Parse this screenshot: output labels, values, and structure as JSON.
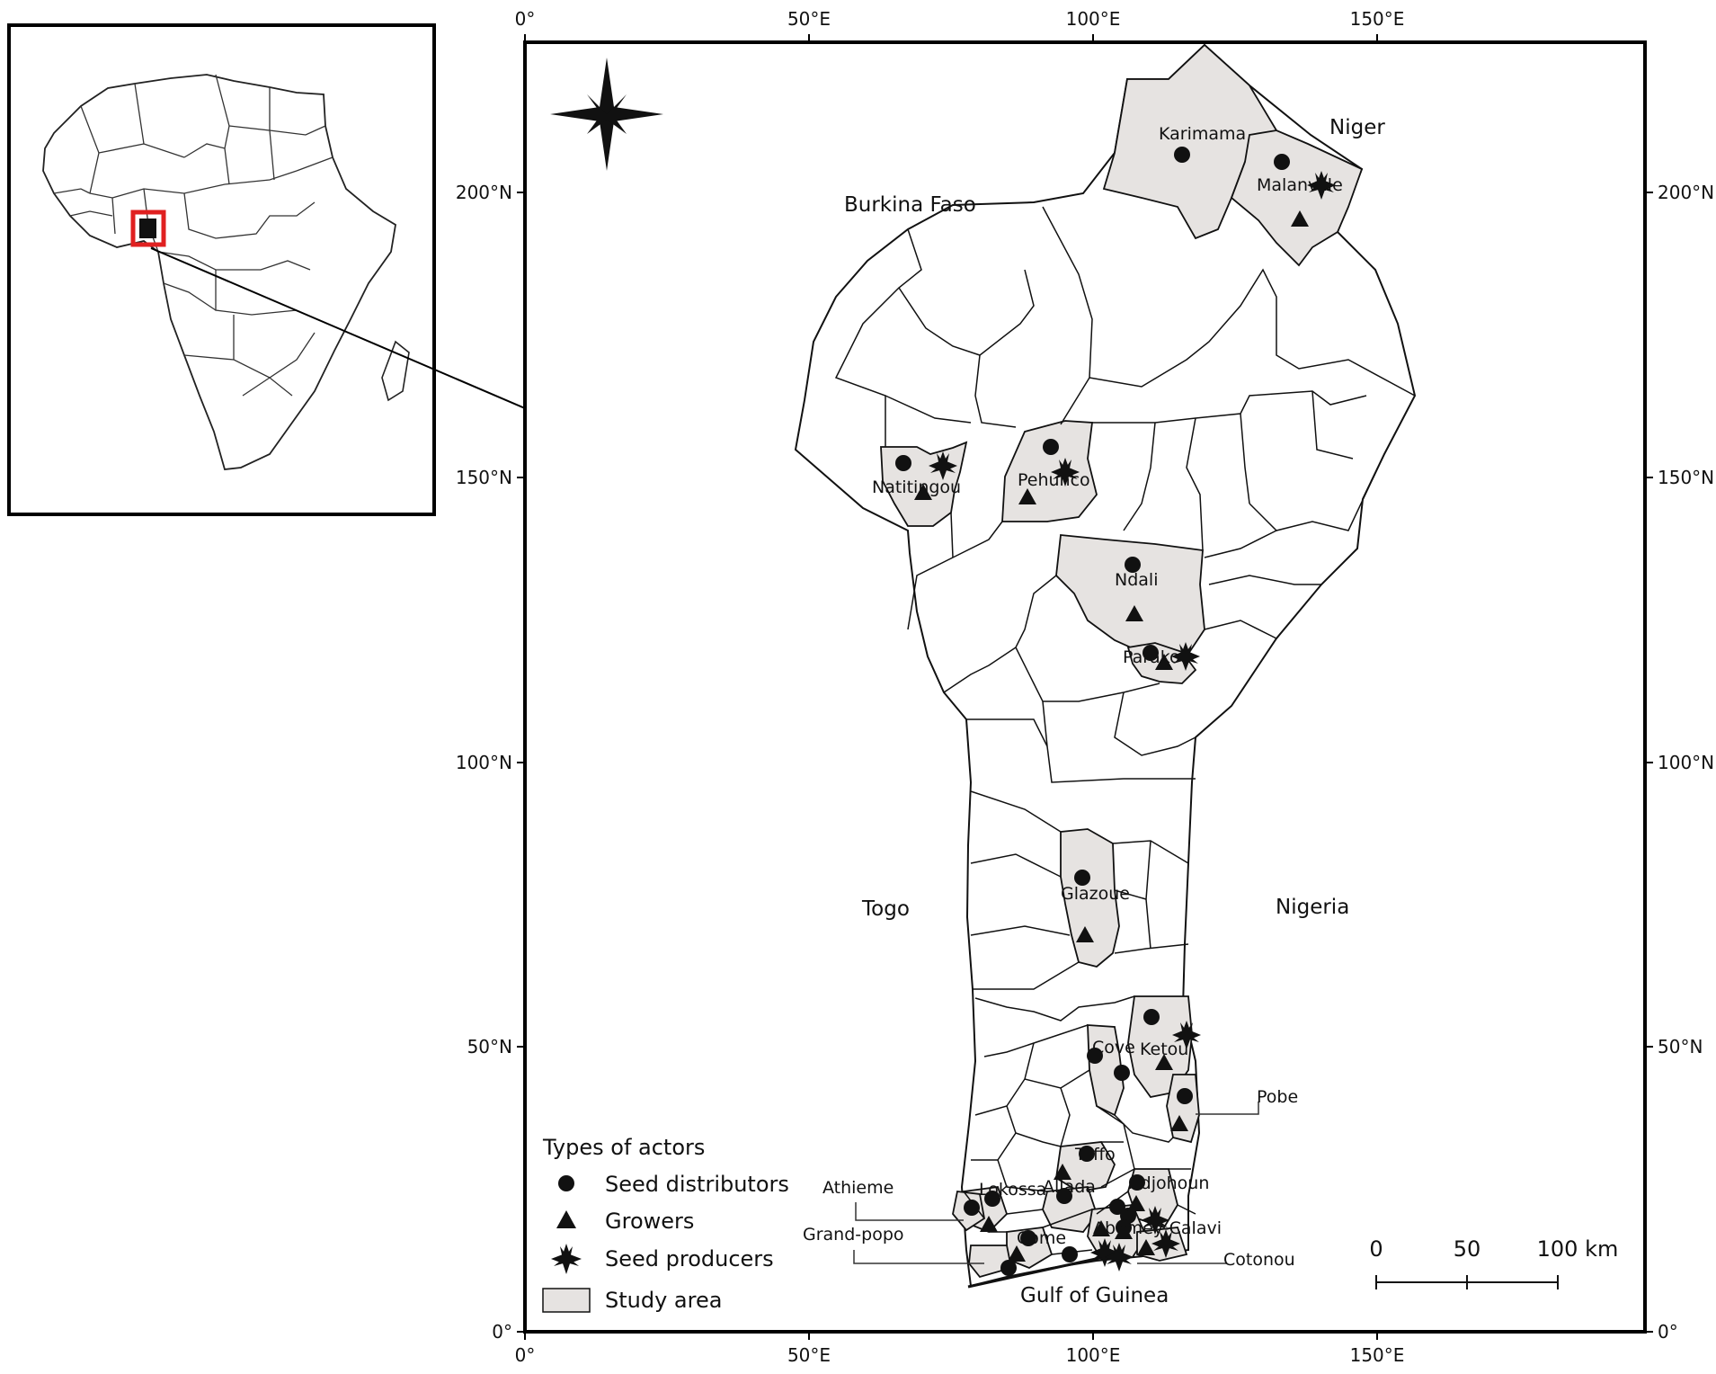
{
  "axes": {
    "top_labels": [
      "0°",
      "50°E",
      "100°E",
      "150°E"
    ],
    "bottom_labels": [
      "0°",
      "50°E",
      "100°E",
      "150°E"
    ],
    "left_labels": [
      "200°N",
      "150°N",
      "100°N",
      "50°N",
      "0°"
    ],
    "right_labels": [
      "200°N",
      "150°N",
      "100°N",
      "50°N",
      "0°"
    ]
  },
  "countries": {
    "burkina_faso": "Burkina Faso",
    "niger": "Niger",
    "togo": "Togo",
    "nigeria": "Nigeria",
    "gulf": "Gulf of Guinea"
  },
  "places": {
    "karimama": "Karimama",
    "malanville": "Malanville",
    "natitingou": "Natitingou",
    "pehunco": "Pehunco",
    "ndali": "Ndali",
    "parakou": "Parakou",
    "glazoue": "Glazoue",
    "cove": "Cove",
    "ketou": "Ketou",
    "pobe": "Pobe",
    "toffo": "Toffo",
    "athieme": "Athieme",
    "lokossa": "Lokossa",
    "allada": "Allada",
    "adjohoun": "Adjohoun",
    "grand_popo": "Grand-popo",
    "come": "Come",
    "abomey_calavi": "Abomey-Calavi",
    "cotonou": "Cotonou"
  },
  "legend": {
    "title": "Types of actors",
    "distributors": "Seed distributors",
    "growers": "Growers",
    "producers": "Seed producers",
    "study_area": "Study area"
  },
  "scale": {
    "l0": "0",
    "l50": "50",
    "l100": "100 km"
  },
  "colors": {
    "study_area": "#e6e3e1",
    "frame": "#000000",
    "inset_highlight": "#e02020"
  },
  "icons": {
    "north_arrow": "compass-star-icon",
    "distributor": "circle-icon",
    "grower": "triangle-icon",
    "producer": "star-icon"
  }
}
